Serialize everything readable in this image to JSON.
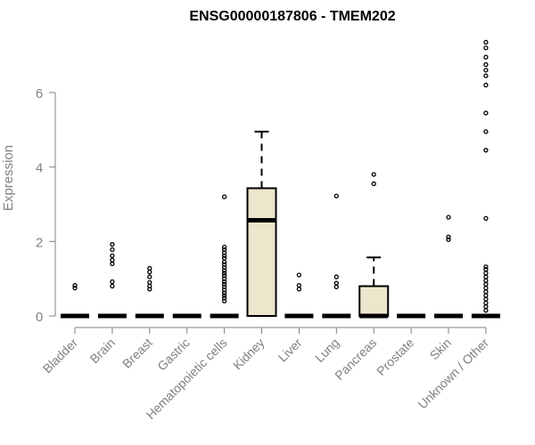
{
  "chart_data": {
    "type": "box",
    "title": "ENSG00000187806 - TMEM202",
    "xlabel": "",
    "ylabel": "Expression",
    "ylim": [
      0,
      7.6
    ],
    "y_ticks": [
      0,
      2,
      4,
      6
    ],
    "grid": false,
    "box_fill": "#ede6cd",
    "categories": [
      "Bladder",
      "Brain",
      "Breast",
      "Gastric",
      "Hematopoietic cells",
      "Kidney",
      "Liver",
      "Lung",
      "Pancreas",
      "Prostate",
      "Skin",
      "Unknown / Other"
    ],
    "boxes": [
      {
        "q1": 0,
        "median": 0,
        "q3": 0,
        "whisker_low": 0,
        "whisker_high": 0,
        "outliers": [
          0.75,
          0.82
        ]
      },
      {
        "q1": 0,
        "median": 0,
        "q3": 0,
        "whisker_low": 0,
        "whisker_high": 0,
        "outliers": [
          0.8,
          0.92,
          1.4,
          1.5,
          1.62,
          1.78,
          1.92
        ]
      },
      {
        "q1": 0,
        "median": 0,
        "q3": 0,
        "whisker_low": 0,
        "whisker_high": 0,
        "outliers": [
          0.72,
          0.8,
          0.9,
          1.05,
          1.18,
          1.28
        ]
      },
      {
        "q1": 0,
        "median": 0,
        "q3": 0,
        "whisker_low": 0,
        "whisker_high": 0,
        "outliers": []
      },
      {
        "q1": 0,
        "median": 0,
        "q3": 0,
        "whisker_low": 0,
        "whisker_high": 0,
        "outliers": [
          0.4,
          0.48,
          0.55,
          0.62,
          0.7,
          0.78,
          0.85,
          0.92,
          1.0,
          1.08,
          1.15,
          1.22,
          1.3,
          1.38,
          1.45,
          1.55,
          1.62,
          1.7,
          1.78,
          1.85,
          3.2
        ]
      },
      {
        "q1": 0,
        "median": 2.57,
        "q3": 3.43,
        "whisker_low": 0,
        "whisker_high": 4.95,
        "outliers": []
      },
      {
        "q1": 0,
        "median": 0,
        "q3": 0,
        "whisker_low": 0,
        "whisker_high": 0,
        "outliers": [
          0.72,
          0.82,
          1.1
        ]
      },
      {
        "q1": 0,
        "median": 0,
        "q3": 0,
        "whisker_low": 0,
        "whisker_high": 0,
        "outliers": [
          0.78,
          0.88,
          1.05,
          3.22
        ]
      },
      {
        "q1": 0,
        "median": 0,
        "q3": 0.8,
        "whisker_low": 0,
        "whisker_high": 1.57,
        "outliers": [
          3.55,
          3.8
        ]
      },
      {
        "q1": 0,
        "median": 0,
        "q3": 0,
        "whisker_low": 0,
        "whisker_high": 0,
        "outliers": []
      },
      {
        "q1": 0,
        "median": 0,
        "q3": 0,
        "whisker_low": 0,
        "whisker_high": 0,
        "outliers": [
          2.05,
          2.12,
          2.65
        ]
      },
      {
        "q1": 0,
        "median": 0,
        "q3": 0,
        "whisker_low": 0,
        "whisker_high": 0,
        "outliers": [
          0.15,
          0.25,
          0.35,
          0.45,
          0.55,
          0.65,
          0.75,
          0.85,
          0.95,
          1.05,
          1.15,
          1.25,
          1.32,
          2.62,
          4.45,
          4.95,
          5.45,
          6.2,
          6.45,
          6.6,
          6.75,
          6.95,
          7.2,
          7.35
        ]
      }
    ]
  }
}
